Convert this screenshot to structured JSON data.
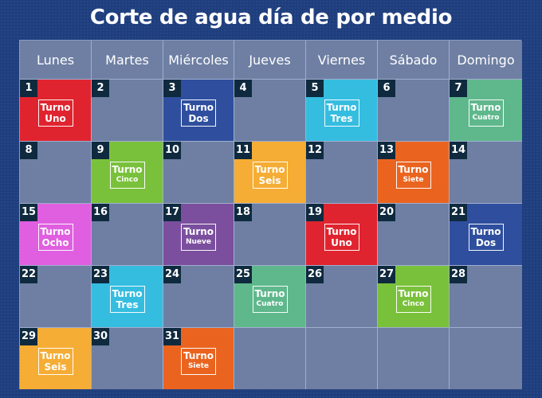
{
  "title": "Corte de agua día de por medio",
  "weekdays": [
    "Lunes",
    "Martes",
    "Miércoles",
    "Jueves",
    "Viernes",
    "Sábado",
    "Domingo"
  ],
  "turno_label": "Turno",
  "colors": {
    "Uno": "#e0242f",
    "Dos": "#2f4f9e",
    "Tres": "#35bde0",
    "Cuatro": "#5fb88c",
    "Cinco": "#7ac13b",
    "Seis": "#f5ad35",
    "Siete": "#ea6420",
    "Ocho": "#e05fe0",
    "Nueve": "#7b4f9e",
    "empty": "#6e7fa3"
  },
  "days": [
    {
      "day": "1",
      "turno": "Uno"
    },
    {
      "day": "2",
      "turno": ""
    },
    {
      "day": "3",
      "turno": "Dos"
    },
    {
      "day": "4",
      "turno": ""
    },
    {
      "day": "5",
      "turno": "Tres"
    },
    {
      "day": "6",
      "turno": ""
    },
    {
      "day": "7",
      "turno": "Cuatro"
    },
    {
      "day": "8",
      "turno": ""
    },
    {
      "day": "9",
      "turno": "Cinco"
    },
    {
      "day": "10",
      "turno": ""
    },
    {
      "day": "11",
      "turno": "Seis"
    },
    {
      "day": "12",
      "turno": ""
    },
    {
      "day": "13",
      "turno": "Siete"
    },
    {
      "day": "14",
      "turno": ""
    },
    {
      "day": "15",
      "turno": "Ocho"
    },
    {
      "day": "16",
      "turno": ""
    },
    {
      "day": "17",
      "turno": "Nueve"
    },
    {
      "day": "18",
      "turno": ""
    },
    {
      "day": "19",
      "turno": "Uno"
    },
    {
      "day": "20",
      "turno": ""
    },
    {
      "day": "21",
      "turno": "Dos"
    },
    {
      "day": "22",
      "turno": ""
    },
    {
      "day": "23",
      "turno": "Tres"
    },
    {
      "day": "24",
      "turno": ""
    },
    {
      "day": "25",
      "turno": "Cuatro"
    },
    {
      "day": "26",
      "turno": ""
    },
    {
      "day": "27",
      "turno": "Cinco"
    },
    {
      "day": "28",
      "turno": ""
    },
    {
      "day": "29",
      "turno": "Seis"
    },
    {
      "day": "30",
      "turno": ""
    },
    {
      "day": "31",
      "turno": "Siete"
    },
    {
      "day": "",
      "turno": ""
    },
    {
      "day": "",
      "turno": ""
    },
    {
      "day": "",
      "turno": ""
    },
    {
      "day": "",
      "turno": ""
    }
  ]
}
